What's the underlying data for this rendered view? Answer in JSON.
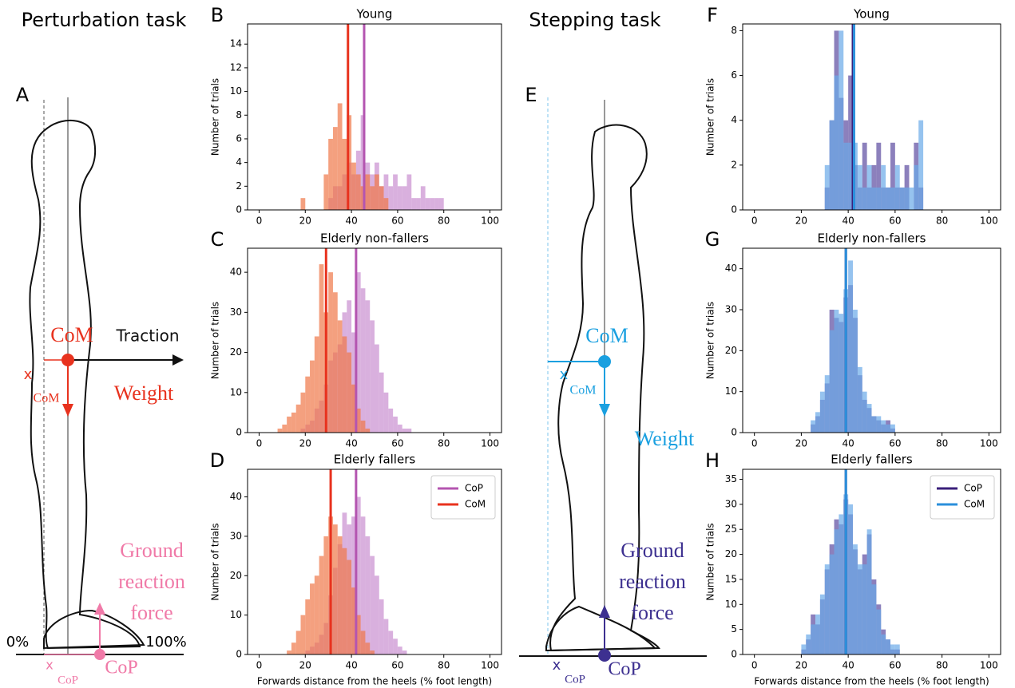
{
  "diagrams": {
    "left": {
      "heading": "Perturbation task",
      "panel": "A",
      "com": "CoM",
      "traction": "Traction",
      "x_com": "x",
      "x_com_sub": "CoM",
      "weight": "Weight",
      "grf": [
        "Ground",
        "reaction",
        "force"
      ],
      "zero": "0%",
      "hundred": "100%",
      "x_cop": "x",
      "x_cop_sub": "CoP",
      "cop": "CoP"
    },
    "right": {
      "heading": "Stepping task",
      "panel": "E",
      "com": "CoM",
      "x_com": "x",
      "x_com_sub": "CoM",
      "weight": "Weight",
      "grf": [
        "Ground",
        "reaction",
        "force"
      ],
      "x_cop": "x",
      "x_cop_sub": "CoP",
      "cop": "CoP"
    }
  },
  "chart_data": [
    {
      "type": "histogram",
      "panel": "B",
      "title": "Young",
      "ylabel": "Number of trials",
      "xlim": [
        -5,
        105
      ],
      "xticks": [
        0,
        20,
        40,
        60,
        80,
        100
      ],
      "ylim": [
        0,
        15.7
      ],
      "yticks": [
        0,
        2,
        4,
        6,
        8,
        10,
        12,
        14
      ],
      "bins": [
        18,
        20,
        22,
        24,
        26,
        28,
        30,
        32,
        34,
        36,
        38,
        40,
        42,
        44,
        46,
        48,
        50,
        52,
        54,
        56,
        58,
        60,
        62,
        64,
        66,
        68,
        70,
        72,
        74,
        76,
        78,
        80
      ],
      "series": [
        {
          "name": "CoP",
          "color": "#b455b0",
          "fill_color": "#c98fd0",
          "mean": 45.5,
          "values": [
            0,
            0,
            0,
            0,
            0,
            0,
            1,
            2,
            2,
            3,
            4,
            3,
            5,
            8,
            4,
            3,
            4,
            2,
            3,
            2,
            3,
            2,
            2,
            3,
            1,
            1,
            2,
            1,
            1,
            1,
            1
          ]
        },
        {
          "name": "CoM",
          "color": "#e8321e",
          "fill_color": "#f07848",
          "mean": 38.5,
          "values": [
            1,
            0,
            0,
            0,
            0,
            3,
            6,
            7,
            9,
            6,
            8,
            4,
            3,
            2,
            3,
            2,
            3,
            2,
            1,
            0,
            0,
            0,
            0,
            0,
            0,
            0,
            0,
            0,
            0,
            0,
            0
          ]
        }
      ]
    },
    {
      "type": "histogram",
      "panel": "C",
      "title": "Elderly non-fallers",
      "ylabel": "Number of trials",
      "xlim": [
        -5,
        105
      ],
      "xticks": [
        0,
        20,
        40,
        60,
        80,
        100
      ],
      "ylim": [
        0,
        46
      ],
      "yticks": [
        0,
        10,
        20,
        30,
        40
      ],
      "bins": [
        8,
        10,
        12,
        14,
        16,
        18,
        20,
        22,
        24,
        26,
        28,
        30,
        32,
        34,
        36,
        38,
        40,
        42,
        44,
        46,
        48,
        50,
        52,
        54,
        56,
        58,
        60,
        62,
        64,
        66
      ],
      "series": [
        {
          "name": "CoP",
          "color": "#b455b0",
          "fill_color": "#c98fd0",
          "mean": 42,
          "values": [
            0,
            0,
            0,
            0,
            0,
            1,
            2,
            3,
            6,
            8,
            12,
            18,
            20,
            22,
            30,
            33,
            25,
            40,
            36,
            33,
            28,
            22,
            15,
            10,
            6,
            4,
            2,
            1,
            1
          ]
        },
        {
          "name": "CoM",
          "color": "#e8321e",
          "fill_color": "#f07848",
          "mean": 29,
          "values": [
            1,
            2,
            4,
            5,
            7,
            10,
            14,
            18,
            24,
            42,
            30,
            40,
            35,
            28,
            24,
            20,
            12,
            6,
            3,
            1,
            0,
            0,
            0,
            0,
            0,
            0,
            0,
            0,
            0
          ]
        }
      ]
    },
    {
      "type": "histogram",
      "panel": "D",
      "title": "Elderly fallers",
      "ylabel": "Number of trials",
      "xlabel": "Forwards distance from the heels (% foot length)",
      "legend": "upper right",
      "xlim": [
        -5,
        105
      ],
      "xticks": [
        0,
        20,
        40,
        60,
        80,
        100
      ],
      "ylim": [
        0,
        47
      ],
      "yticks": [
        0,
        10,
        20,
        30,
        40
      ],
      "bins": [
        12,
        14,
        16,
        18,
        20,
        22,
        24,
        26,
        28,
        30,
        32,
        34,
        36,
        38,
        40,
        42,
        44,
        46,
        48,
        50,
        52,
        54,
        56,
        58,
        60,
        62,
        64
      ],
      "series": [
        {
          "name": "CoP",
          "color": "#b455b0",
          "fill_color": "#c98fd0",
          "mean": 42,
          "values": [
            0,
            0,
            0,
            0,
            1,
            2,
            3,
            5,
            8,
            15,
            22,
            28,
            36,
            33,
            35,
            40,
            35,
            30,
            25,
            20,
            14,
            9,
            6,
            4,
            2,
            1
          ]
        },
        {
          "name": "CoM",
          "color": "#e8321e",
          "fill_color": "#f07848",
          "mean": 31,
          "values": [
            1,
            3,
            6,
            10,
            14,
            18,
            20,
            25,
            30,
            35,
            33,
            30,
            27,
            24,
            17,
            10,
            6,
            3,
            1,
            0,
            0,
            0,
            0,
            0,
            0,
            0
          ]
        }
      ]
    },
    {
      "type": "histogram",
      "panel": "F",
      "title": "Young",
      "ylabel": "Number of trials",
      "xlim": [
        -5,
        105
      ],
      "xticks": [
        0,
        20,
        40,
        60,
        80,
        100
      ],
      "ylim": [
        0,
        8.3
      ],
      "yticks": [
        0,
        2,
        4,
        6,
        8
      ],
      "bins": [
        30,
        32,
        34,
        36,
        38,
        40,
        42,
        44,
        46,
        48,
        50,
        52,
        54,
        56,
        58,
        60,
        62,
        64,
        66,
        68,
        70,
        72
      ],
      "series": [
        {
          "name": "CoP",
          "color": "#3a1f7a",
          "fill_color": "#5b4aa0",
          "mean": 42,
          "values": [
            1,
            4,
            8,
            5,
            4,
            6,
            2,
            1,
            3,
            1,
            2,
            3,
            1,
            1,
            3,
            1,
            1,
            2,
            0,
            3,
            1
          ]
        },
        {
          "name": "CoM",
          "color": "#2b8fdb",
          "fill_color": "#6aaae8",
          "mean": 42.5,
          "values": [
            2,
            4,
            6,
            8,
            3,
            3,
            3,
            2,
            1,
            2,
            1,
            1,
            2,
            1,
            1,
            2,
            1,
            1,
            1,
            2,
            4
          ]
        }
      ]
    },
    {
      "type": "histogram",
      "panel": "G",
      "title": "Elderly non-fallers",
      "ylabel": "Number of trials",
      "xlim": [
        -5,
        105
      ],
      "xticks": [
        0,
        20,
        40,
        60,
        80,
        100
      ],
      "ylim": [
        0,
        45
      ],
      "yticks": [
        0,
        10,
        20,
        30,
        40
      ],
      "bins": [
        24,
        26,
        28,
        30,
        32,
        34,
        36,
        38,
        40,
        42,
        44,
        46,
        48,
        50,
        52,
        54,
        56,
        58,
        60
      ],
      "series": [
        {
          "name": "CoP",
          "color": "#3a1f7a",
          "fill_color": "#5b4aa0",
          "mean": 39,
          "values": [
            2,
            4,
            8,
            12,
            30,
            28,
            27,
            33,
            36,
            28,
            14,
            8,
            6,
            4,
            3,
            2,
            3,
            1
          ]
        },
        {
          "name": "CoM",
          "color": "#2b8fdb",
          "fill_color": "#6aaae8",
          "mean": 39,
          "values": [
            3,
            5,
            10,
            14,
            25,
            30,
            29,
            35,
            42,
            30,
            16,
            10,
            7,
            4,
            4,
            3,
            2,
            2
          ]
        }
      ]
    },
    {
      "type": "histogram",
      "panel": "H",
      "title": "Elderly fallers",
      "ylabel": "Number of trials",
      "xlabel": "Forwards distance from the heels (% foot length)",
      "legend": "upper right",
      "xlim": [
        -5,
        105
      ],
      "xticks": [
        0,
        20,
        40,
        60,
        80,
        100
      ],
      "ylim": [
        0,
        37
      ],
      "yticks": [
        0,
        5,
        10,
        15,
        20,
        25,
        30,
        35
      ],
      "bins": [
        20,
        22,
        24,
        26,
        28,
        30,
        32,
        34,
        36,
        38,
        40,
        42,
        44,
        46,
        48,
        50,
        52,
        54,
        56,
        58,
        60,
        62
      ],
      "series": [
        {
          "name": "CoP",
          "color": "#3a1f7a",
          "fill_color": "#5b4aa0",
          "mean": 39,
          "values": [
            1,
            3,
            8,
            6,
            11,
            17,
            22,
            27,
            26,
            31,
            28,
            21,
            17,
            20,
            24,
            15,
            10,
            5,
            3,
            1,
            1
          ]
        },
        {
          "name": "CoM",
          "color": "#2b8fdb",
          "fill_color": "#6aaae8",
          "mean": 39,
          "values": [
            2,
            4,
            6,
            8,
            12,
            18,
            20,
            25,
            28,
            32,
            30,
            22,
            18,
            18,
            25,
            14,
            9,
            4,
            3,
            2,
            2
          ]
        }
      ]
    }
  ]
}
